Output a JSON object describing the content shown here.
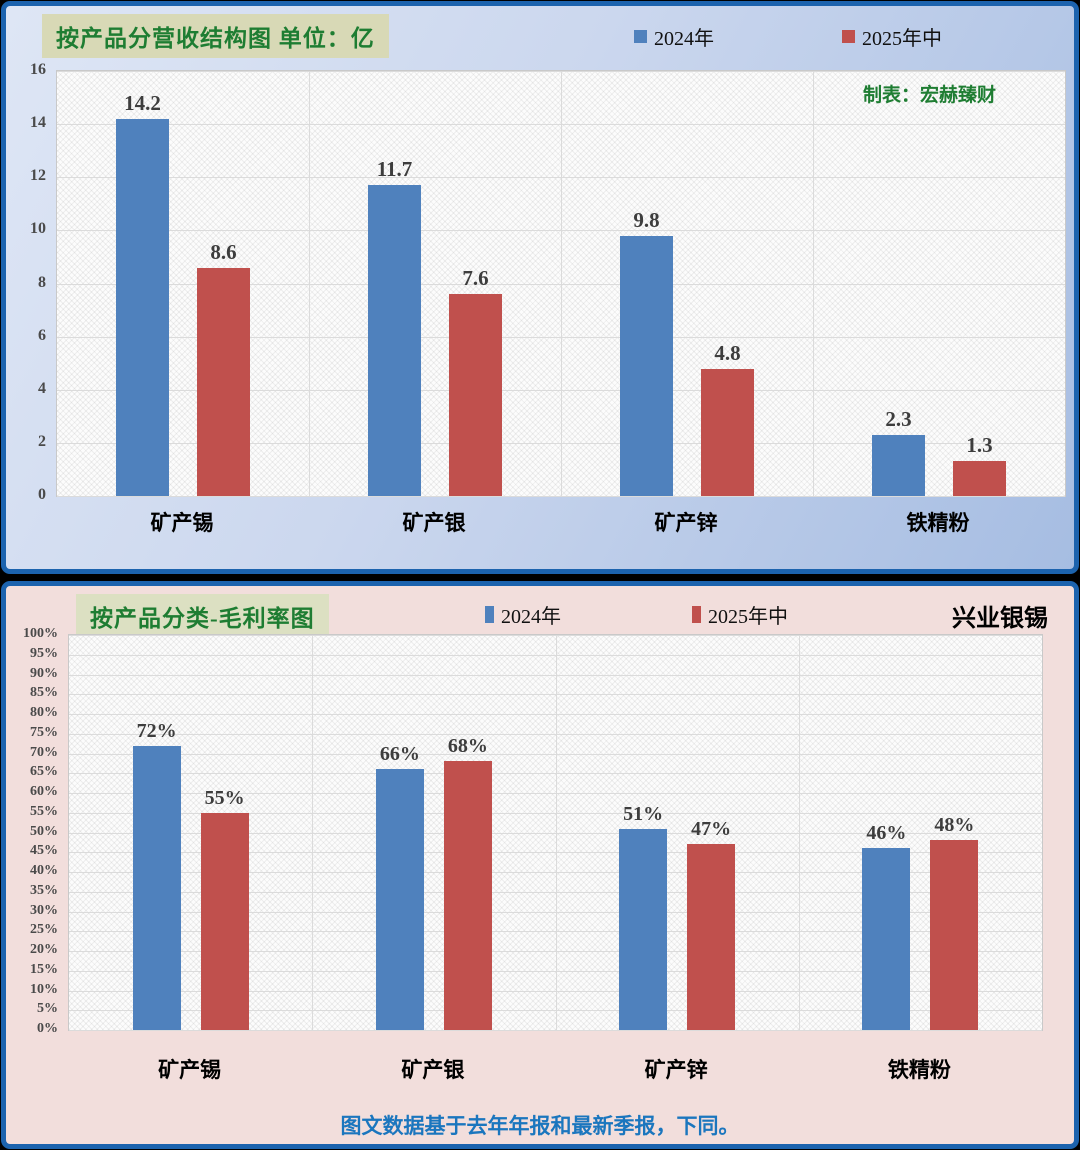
{
  "chart_data": [
    {
      "type": "bar",
      "title": "按产品分营收结构图 单位：亿",
      "annotation": "制表：宏赫臻财",
      "categories": [
        "矿产锡",
        "矿产银",
        "矿产锌",
        "铁精粉"
      ],
      "series": [
        {
          "name": "2024年",
          "color": "#4F81BD",
          "values": [
            14.2,
            11.7,
            9.8,
            2.3
          ],
          "labels": [
            "14.2",
            "11.7",
            "9.8",
            "2.3"
          ]
        },
        {
          "name": "2025年中",
          "color": "#C0504D",
          "values": [
            8.6,
            7.6,
            4.8,
            1.3
          ],
          "labels": [
            "8.6",
            "7.6",
            "4.8",
            "1.3"
          ]
        }
      ],
      "ylim": [
        0,
        16
      ],
      "yticks": [
        "16",
        "14",
        "12",
        "10",
        "8",
        "6",
        "4",
        "2",
        "0"
      ],
      "grid": true,
      "legend_position": "top"
    },
    {
      "type": "bar",
      "title": "按产品分类-毛利率图",
      "company": "兴业银锡",
      "footnote": "图文数据基于去年年报和最新季报，下同。",
      "categories": [
        "矿产锡",
        "矿产银",
        "矿产锌",
        "铁精粉"
      ],
      "series": [
        {
          "name": "2024年",
          "color": "#4F81BD",
          "values": [
            72,
            66,
            51,
            46
          ],
          "labels": [
            "72%",
            "66%",
            "51%",
            "46%"
          ]
        },
        {
          "name": "2025年中",
          "color": "#C0504D",
          "values": [
            55,
            68,
            47,
            48
          ],
          "labels": [
            "55%",
            "68%",
            "47%",
            "48%"
          ]
        }
      ],
      "ylim": [
        0,
        100
      ],
      "yticks": [
        "100%",
        "95%",
        "90%",
        "85%",
        "80%",
        "75%",
        "70%",
        "65%",
        "60%",
        "55%",
        "50%",
        "45%",
        "40%",
        "35%",
        "30%",
        "25%",
        "20%",
        "15%",
        "10%",
        "5%",
        "0%"
      ],
      "grid": true,
      "legend_position": "top"
    }
  ],
  "colors": {
    "series_2024": "#4F81BD",
    "series_2025_mid": "#C0504D",
    "title_green": "#1E7D32",
    "footnote_blue": "#1B76BE",
    "panel_border_blue": "#1C63AE"
  }
}
